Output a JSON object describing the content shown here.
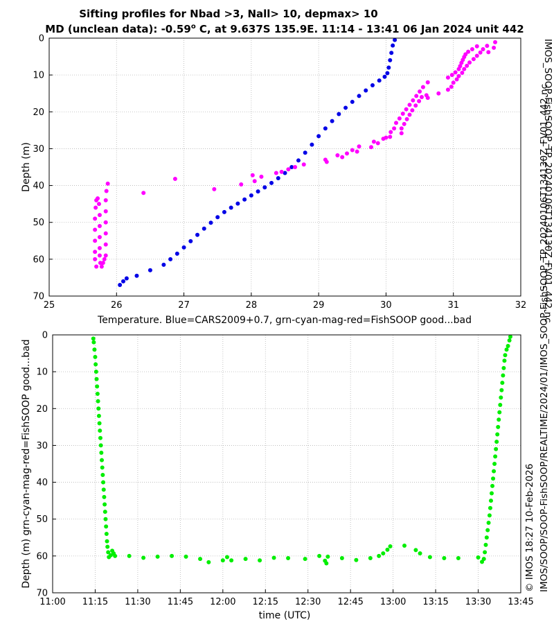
{
  "title": {
    "line1": "Sifting profiles for Nbad >3, Nall> 10, depmax> 10",
    "line2_prefix": "MD (unclean data): -0.59",
    "line2_degree": "o",
    "line2_suffix": " C, at 9.637S 135.9E. 11:14 - 13:41 06 Jan 2024 unit 442"
  },
  "side_labels": {
    "right_top": "IMOS_SOOP-FishSOOP_TP_20240106T134130Z_FV01_442.nc",
    "right_bottom_line1": "© IMOS 18:27 10-Feb-2026",
    "right_bottom_line2": "IMOS/SOOP/SOOP-FishSOOP/REALTIME/2024/01/IMOS_SOOP-FishSOOP_TP_20240106T134130Z_FV01_442.nc"
  },
  "colors": {
    "blue_series": "#0000e6",
    "magenta_series": "#ff00ff",
    "green_series": "#00ee00",
    "grid": "#b4b4b4"
  },
  "chart_data": [
    {
      "type": "scatter",
      "xlabel": "Temperature. Blue=CARS2009+0.7, grn-cyan-mag-red=FishSOOP good...bad",
      "ylabel": "Depth (m)",
      "xlim": [
        25,
        32
      ],
      "ylim": [
        70,
        0
      ],
      "y_reversed": true,
      "grid": true,
      "xticks": [
        "25",
        "26",
        "27",
        "28",
        "29",
        "30",
        "31",
        "32"
      ],
      "yticks": [
        "0",
        "10",
        "20",
        "30",
        "40",
        "50",
        "60",
        "70"
      ],
      "series": [
        {
          "color": "blue",
          "points": [
            [
              30.13,
              0.5
            ],
            [
              30.1,
              2
            ],
            [
              30.08,
              4
            ],
            [
              30.06,
              6
            ],
            [
              30.04,
              8
            ],
            [
              30.02,
              9.5
            ],
            [
              29.98,
              10.5
            ],
            [
              29.9,
              11.5
            ],
            [
              29.8,
              12.8
            ],
            [
              29.7,
              14.2
            ],
            [
              29.6,
              15.7
            ],
            [
              29.5,
              17.3
            ],
            [
              29.4,
              18.9
            ],
            [
              29.3,
              20.6
            ],
            [
              29.2,
              22.5
            ],
            [
              29.1,
              24.5
            ],
            [
              29.0,
              26.6
            ],
            [
              28.9,
              28.9
            ],
            [
              28.8,
              31.1
            ],
            [
              28.7,
              33.2
            ],
            [
              28.6,
              35.0
            ],
            [
              28.5,
              36.6
            ],
            [
              28.4,
              38.0
            ],
            [
              28.3,
              39.3
            ],
            [
              28.2,
              40.5
            ],
            [
              28.1,
              41.6
            ],
            [
              28.0,
              42.7
            ],
            [
              27.9,
              43.8
            ],
            [
              27.8,
              44.9
            ],
            [
              27.7,
              46.0
            ],
            [
              27.6,
              47.2
            ],
            [
              27.5,
              48.6
            ],
            [
              27.4,
              50.1
            ],
            [
              27.3,
              51.7
            ],
            [
              27.2,
              53.4
            ],
            [
              27.1,
              55.1
            ],
            [
              27.0,
              56.8
            ],
            [
              26.9,
              58.5
            ],
            [
              26.8,
              60.0
            ],
            [
              26.7,
              61.5
            ],
            [
              26.5,
              63.0
            ],
            [
              26.3,
              64.5
            ],
            [
              26.15,
              65.2
            ],
            [
              26.1,
              66.0
            ],
            [
              26.05,
              67.0
            ]
          ]
        },
        {
          "color": "magenta",
          "points": [
            [
              25.7,
              62
            ],
            [
              25.68,
              60
            ],
            [
              25.68,
              58
            ],
            [
              25.68,
              55
            ],
            [
              25.68,
              52
            ],
            [
              25.68,
              49
            ],
            [
              25.69,
              46
            ],
            [
              25.7,
              44
            ],
            [
              25.72,
              43.5
            ],
            [
              25.74,
              45
            ],
            [
              25.75,
              48
            ],
            [
              25.75,
              51
            ],
            [
              25.75,
              54
            ],
            [
              25.75,
              57
            ],
            [
              25.75,
              59
            ],
            [
              25.76,
              61
            ],
            [
              25.78,
              62
            ],
            [
              25.8,
              61
            ],
            [
              25.82,
              60
            ],
            [
              25.84,
              59
            ],
            [
              25.84,
              56
            ],
            [
              25.84,
              53
            ],
            [
              25.84,
              50
            ],
            [
              25.84,
              47
            ],
            [
              25.84,
              44
            ],
            [
              25.85,
              41.5
            ],
            [
              25.87,
              39.5
            ],
            [
              26.4,
              42
            ],
            [
              26.87,
              38.2
            ],
            [
              27.45,
              41
            ],
            [
              27.85,
              39.7
            ],
            [
              28.02,
              37.2
            ],
            [
              28.05,
              38.8
            ],
            [
              28.15,
              37.6
            ],
            [
              28.37,
              36.6
            ],
            [
              28.45,
              36.3
            ],
            [
              28.55,
              35.6
            ],
            [
              28.65,
              35.0
            ],
            [
              28.78,
              34.3
            ],
            [
              29.1,
              33.0
            ],
            [
              29.12,
              33.6
            ],
            [
              29.28,
              31.8
            ],
            [
              29.35,
              32.3
            ],
            [
              29.42,
              31.3
            ],
            [
              29.5,
              30.4
            ],
            [
              29.57,
              30.8
            ],
            [
              29.6,
              29.4
            ],
            [
              29.78,
              29.6
            ],
            [
              29.82,
              28.1
            ],
            [
              29.88,
              28.5
            ],
            [
              29.96,
              27.3
            ],
            [
              30.0,
              27.0
            ],
            [
              30.06,
              26.8
            ],
            [
              30.07,
              25.5
            ],
            [
              30.12,
              24.5
            ],
            [
              30.15,
              23.0
            ],
            [
              30.2,
              21.8
            ],
            [
              30.25,
              20.5
            ],
            [
              30.3,
              19.3
            ],
            [
              30.35,
              18.1
            ],
            [
              30.4,
              16.9
            ],
            [
              30.45,
              15.7
            ],
            [
              30.5,
              14.5
            ],
            [
              30.55,
              13.3
            ],
            [
              30.62,
              12.0
            ],
            [
              30.23,
              25.8
            ],
            [
              30.23,
              24.5
            ],
            [
              30.27,
              23.3
            ],
            [
              30.31,
              22.0
            ],
            [
              30.35,
              20.8
            ],
            [
              30.39,
              19.6
            ],
            [
              30.44,
              18.3
            ],
            [
              30.49,
              17.1
            ],
            [
              30.53,
              16.0
            ],
            [
              30.6,
              15.5
            ],
            [
              30.62,
              16.2
            ],
            [
              30.78,
              15.0
            ],
            [
              30.92,
              14.0
            ],
            [
              30.97,
              13.2
            ],
            [
              31.0,
              12.1
            ],
            [
              31.05,
              11.2
            ],
            [
              31.08,
              10.3
            ],
            [
              31.13,
              9.4
            ],
            [
              31.16,
              8.4
            ],
            [
              31.2,
              7.5
            ],
            [
              31.24,
              6.6
            ],
            [
              31.3,
              5.7
            ],
            [
              31.35,
              4.8
            ],
            [
              31.4,
              3.9
            ],
            [
              31.44,
              3.0
            ],
            [
              31.5,
              2.1
            ],
            [
              30.92,
              10.7
            ],
            [
              30.98,
              10.0
            ],
            [
              31.03,
              9.3
            ],
            [
              31.08,
              8.4
            ],
            [
              31.1,
              7.6
            ],
            [
              31.12,
              6.7
            ],
            [
              31.14,
              5.9
            ],
            [
              31.16,
              5.1
            ],
            [
              31.18,
              4.4
            ],
            [
              31.22,
              3.7
            ],
            [
              31.28,
              3.0
            ],
            [
              31.35,
              2.2
            ],
            [
              31.52,
              3.8
            ],
            [
              31.6,
              2.6
            ],
            [
              31.62,
              1.1
            ]
          ]
        }
      ]
    },
    {
      "type": "scatter",
      "xlabel": "time (UTC)",
      "ylabel": "Depth (m) grn-cyan-mag-red=FishSOOP good...bad",
      "xlim": [
        "11:00",
        "13:45"
      ],
      "ylim": [
        70,
        0
      ],
      "y_reversed": true,
      "grid": true,
      "xticks": [
        "11:00",
        "11:15",
        "11:30",
        "11:45",
        "12:00",
        "12:15",
        "12:30",
        "12:45",
        "13:00",
        "13:15",
        "13:30",
        "13:45"
      ],
      "yticks": [
        "0",
        "10",
        "20",
        "30",
        "40",
        "50",
        "60",
        "70"
      ],
      "series": [
        {
          "color": "green",
          "points": [
            [
              "11:14:20",
              1
            ],
            [
              "11:14:30",
              2
            ],
            [
              "11:14:45",
              4
            ],
            [
              "11:15:00",
              6
            ],
            [
              "11:15:10",
              8
            ],
            [
              "11:15:20",
              10
            ],
            [
              "11:15:30",
              12
            ],
            [
              "11:15:40",
              14
            ],
            [
              "11:15:50",
              16
            ],
            [
              "11:16:00",
              18
            ],
            [
              "11:16:10",
              20
            ],
            [
              "11:16:20",
              22
            ],
            [
              "11:16:30",
              24
            ],
            [
              "11:16:40",
              26
            ],
            [
              "11:16:50",
              28
            ],
            [
              "11:17:00",
              30
            ],
            [
              "11:17:10",
              32
            ],
            [
              "11:17:20",
              34
            ],
            [
              "11:17:30",
              36
            ],
            [
              "11:17:40",
              38
            ],
            [
              "11:17:50",
              40
            ],
            [
              "11:18:00",
              42
            ],
            [
              "11:18:10",
              44
            ],
            [
              "11:18:20",
              46
            ],
            [
              "11:18:30",
              48
            ],
            [
              "11:18:40",
              50
            ],
            [
              "11:18:50",
              52
            ],
            [
              "11:19:00",
              54
            ],
            [
              "11:19:10",
              56
            ],
            [
              "11:19:20",
              57.5
            ],
            [
              "11:19:35",
              59
            ],
            [
              "11:19:50",
              60.3
            ],
            [
              "11:20:30",
              59.8
            ],
            [
              "11:21:00",
              58.6
            ],
            [
              "11:21:30",
              59.3
            ],
            [
              "11:22:00",
              60
            ],
            [
              "11:27:00",
              60
            ],
            [
              "11:32:00",
              60.5
            ],
            [
              "11:37:00",
              60.2
            ],
            [
              "11:42:00",
              60
            ],
            [
              "11:47:00",
              60.2
            ],
            [
              "11:52:00",
              60.8
            ],
            [
              "11:55:00",
              61.7
            ],
            [
              "12:00:00",
              61.2
            ],
            [
              "12:01:30",
              60.3
            ],
            [
              "12:03:00",
              61.2
            ],
            [
              "12:08:00",
              60.8
            ],
            [
              "12:13:00",
              61.2
            ],
            [
              "12:18:00",
              60.5
            ],
            [
              "12:23:00",
              60.6
            ],
            [
              "12:29:00",
              60.8
            ],
            [
              "12:34:00",
              60
            ],
            [
              "12:36:00",
              61.3
            ],
            [
              "12:36:30",
              62
            ],
            [
              "12:37:00",
              60.2
            ],
            [
              "12:42:00",
              60.6
            ],
            [
              "12:47:00",
              61.1
            ],
            [
              "12:52:00",
              60.6
            ],
            [
              "12:55:00",
              60
            ],
            [
              "12:56:30",
              59.3
            ],
            [
              "12:58:00",
              58.3
            ],
            [
              "12:59:00",
              57.4
            ],
            [
              "13:04:00",
              57.2
            ],
            [
              "13:08:00",
              58.4
            ],
            [
              "13:09:30",
              59.3
            ],
            [
              "13:13:00",
              60.3
            ],
            [
              "13:18:00",
              60.6
            ],
            [
              "13:23:00",
              60.6
            ],
            [
              "13:30:00",
              60.4
            ],
            [
              "13:31:20",
              61.6
            ],
            [
              "13:32:00",
              60.8
            ],
            [
              "13:32:20",
              59
            ],
            [
              "13:32:40",
              57
            ],
            [
              "13:33:00",
              55
            ],
            [
              "13:33:20",
              53
            ],
            [
              "13:33:40",
              51
            ],
            [
              "13:34:00",
              49
            ],
            [
              "13:34:15",
              47
            ],
            [
              "13:34:30",
              45
            ],
            [
              "13:34:45",
              43
            ],
            [
              "13:35:00",
              41
            ],
            [
              "13:35:15",
              39
            ],
            [
              "13:35:30",
              37
            ],
            [
              "13:35:45",
              35
            ],
            [
              "13:36:00",
              33
            ],
            [
              "13:36:15",
              31
            ],
            [
              "13:36:30",
              29
            ],
            [
              "13:36:45",
              27
            ],
            [
              "13:37:00",
              25
            ],
            [
              "13:37:15",
              23
            ],
            [
              "13:37:30",
              21
            ],
            [
              "13:37:45",
              19
            ],
            [
              "13:38:00",
              17
            ],
            [
              "13:38:15",
              15
            ],
            [
              "13:38:30",
              13
            ],
            [
              "13:38:45",
              11
            ],
            [
              "13:39:00",
              9
            ],
            [
              "13:39:15",
              7
            ],
            [
              "13:39:30",
              5.5
            ],
            [
              "13:40:00",
              4
            ],
            [
              "13:40:30",
              3
            ],
            [
              "13:41:00",
              1.5
            ],
            [
              "13:41:20",
              0.5
            ]
          ]
        }
      ]
    }
  ]
}
